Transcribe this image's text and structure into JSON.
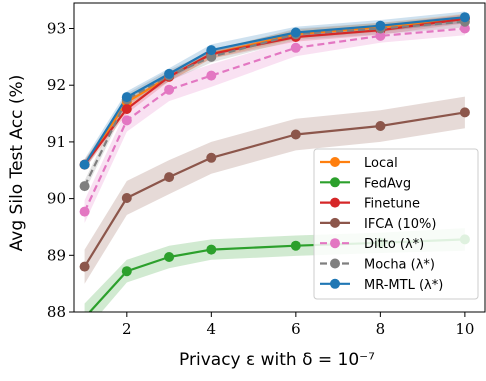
{
  "chart_data": {
    "type": "line",
    "xlabel": "Privacy ε with δ = 10⁻⁷",
    "ylabel": "Avg Silo Test Acc (%)",
    "xlim": [
      0.75,
      10.5
    ],
    "ylim": [
      88,
      93.45
    ],
    "xticks": [
      2,
      4,
      6,
      8,
      10
    ],
    "yticks": [
      88,
      89,
      90,
      91,
      92,
      93
    ],
    "grid": false,
    "legend_position": "lower-right",
    "series": [
      {
        "name": "Local",
        "color": "#ff7f0e",
        "dash": false,
        "x": [
          1,
          2,
          3,
          4,
          6,
          8,
          10
        ],
        "y": [
          90.6,
          91.7,
          92.15,
          92.55,
          92.9,
          93.02,
          93.18
        ],
        "band": [
          0.08,
          0.08,
          0.08,
          0.08,
          0.08,
          0.08,
          0.08
        ]
      },
      {
        "name": "FedAvg",
        "color": "#2ca02c",
        "dash": false,
        "x": [
          1,
          2,
          3,
          4,
          6,
          8,
          10
        ],
        "y": [
          87.9,
          88.72,
          88.97,
          89.1,
          89.17,
          89.22,
          89.28
        ],
        "band": [
          0.25,
          0.2,
          0.2,
          0.18,
          0.18,
          0.18,
          0.2
        ]
      },
      {
        "name": "Finetune",
        "color": "#d62728",
        "dash": false,
        "x": [
          1,
          2,
          3,
          4,
          6,
          8,
          10
        ],
        "y": [
          90.6,
          91.58,
          92.15,
          92.55,
          92.85,
          92.97,
          93.17
        ],
        "band": [
          0.08,
          0.08,
          0.08,
          0.08,
          0.08,
          0.08,
          0.08
        ]
      },
      {
        "name": "IFCA (10%)",
        "color": "#8c564b",
        "dash": false,
        "x": [
          1,
          2,
          3,
          4,
          6,
          8,
          10
        ],
        "y": [
          88.8,
          90.01,
          90.38,
          90.72,
          91.13,
          91.28,
          91.52
        ],
        "band": [
          0.3,
          0.3,
          0.3,
          0.28,
          0.28,
          0.28,
          0.28
        ]
      },
      {
        "name": "Ditto (λ*)",
        "color": "#e377c2",
        "dash": true,
        "x": [
          1,
          2,
          3,
          4,
          6,
          8,
          10
        ],
        "y": [
          89.77,
          91.38,
          91.92,
          92.17,
          92.66,
          92.87,
          93.0
        ],
        "band": [
          0.2,
          0.2,
          0.2,
          0.2,
          0.15,
          0.12,
          0.12
        ]
      },
      {
        "name": "Mocha (λ*)",
        "color": "#7f7f7f",
        "dash": true,
        "x": [
          1,
          2,
          3,
          4,
          6,
          8,
          10
        ],
        "y": [
          90.22,
          91.75,
          92.17,
          92.5,
          92.9,
          93.0,
          93.12
        ],
        "band": [
          0.1,
          0.1,
          0.1,
          0.1,
          0.1,
          0.1,
          0.1
        ]
      },
      {
        "name": "MR-MTL (λ*)",
        "color": "#1f77b4",
        "dash": false,
        "x": [
          1,
          2,
          3,
          4,
          6,
          8,
          10
        ],
        "y": [
          90.6,
          91.79,
          92.2,
          92.62,
          92.93,
          93.05,
          93.2
        ],
        "band": [
          0.1,
          0.1,
          0.1,
          0.1,
          0.1,
          0.1,
          0.1
        ]
      }
    ]
  }
}
